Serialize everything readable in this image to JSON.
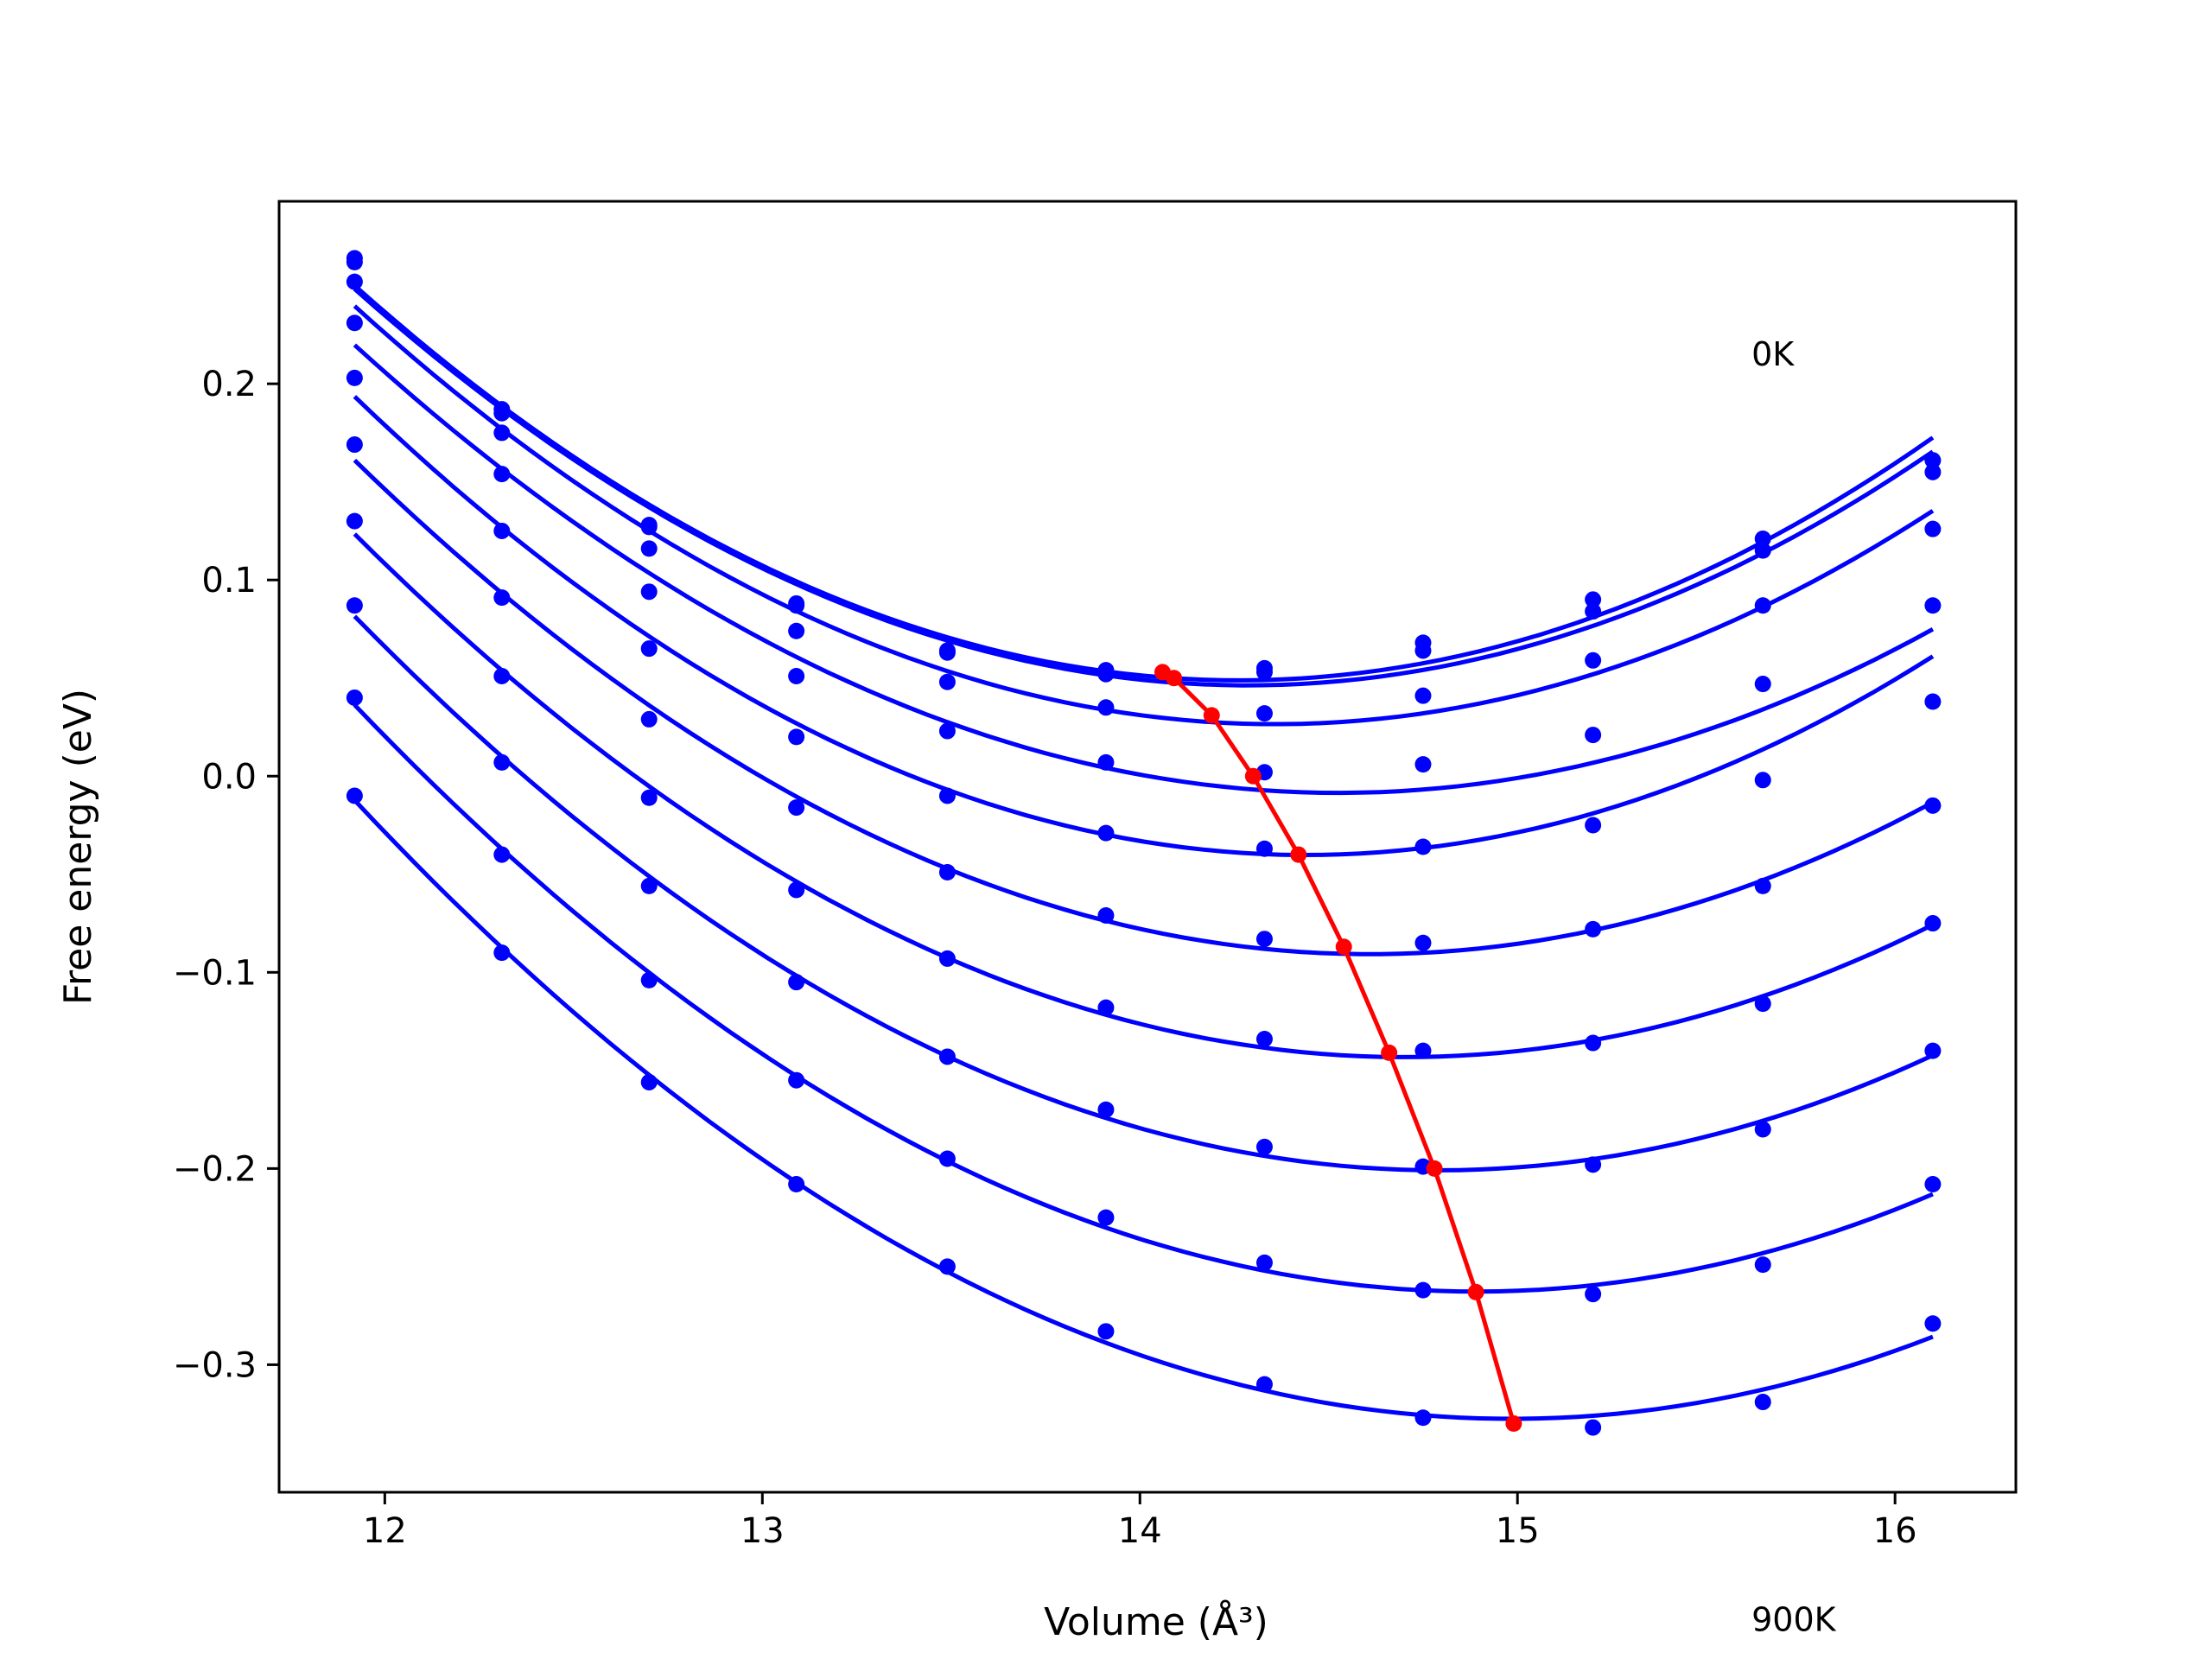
{
  "chart_data": {
    "type": "line",
    "title": "",
    "xlabel": "Volume (Å³)",
    "ylabel": "Free energy (eV)",
    "xlim": [
      11.72,
      16.32
    ],
    "ylim": [
      -0.365,
      0.293
    ],
    "xticks": [
      12,
      13,
      14,
      15,
      16
    ],
    "yticks": [
      -0.3,
      -0.2,
      -0.1,
      0.0,
      0.1,
      0.2
    ],
    "ytick_labels": [
      "−0.3",
      "−0.2",
      "−0.1",
      "0.0",
      "0.1",
      "0.2"
    ],
    "grid": false,
    "annotations": [
      {
        "text": "0K",
        "x": 15.62,
        "y": 0.215
      },
      {
        "text": "900K",
        "x": 15.62,
        "y": -0.43
      }
    ],
    "x": [
      11.92,
      12.31,
      12.7,
      13.09,
      13.49,
      13.91,
      14.33,
      14.75,
      15.2,
      15.65,
      16.1
    ],
    "colors": {
      "isotherm": "#0000ff",
      "minimum": "#ff0000"
    },
    "series": [
      {
        "values": [
          0.264,
          0.187,
          0.128,
          0.088,
          0.064,
          0.054,
          0.055,
          0.068,
          0.09,
          0.121,
          0.161
        ],
        "minimum": [
          14.06,
          0.053
        ]
      },
      {
        "values": [
          0.262,
          0.185,
          0.127,
          0.087,
          0.063,
          0.052,
          0.053,
          0.064,
          0.084,
          0.115,
          0.155
        ],
        "minimum": [
          14.09,
          0.05
        ]
      },
      {
        "values": [
          0.252,
          0.175,
          0.116,
          0.074,
          0.048,
          0.035,
          0.032,
          0.041,
          0.059,
          0.087,
          0.126
        ],
        "minimum": [
          14.19,
          0.031
        ]
      },
      {
        "values": [
          0.231,
          0.154,
          0.094,
          0.051,
          0.023,
          0.007,
          0.002,
          0.006,
          0.021,
          -0.002,
          0.087
        ],
        "minimum": [
          14.3,
          0.0
        ]
      },
      {
        "values": [
          0.203,
          0.125,
          0.065,
          0.02,
          -0.01,
          -0.029,
          -0.037,
          -0.036,
          -0.025,
          0.047,
          0.038
        ],
        "minimum": [
          14.42,
          -0.04
        ]
      },
      {
        "values": [
          0.169,
          0.091,
          0.029,
          -0.016,
          -0.049,
          -0.071,
          -0.083,
          -0.085,
          -0.078,
          -0.056,
          -0.015
        ],
        "minimum": [
          14.54,
          -0.087
        ]
      },
      {
        "values": [
          0.13,
          0.051,
          -0.011,
          -0.058,
          -0.093,
          -0.118,
          -0.134,
          -0.14,
          -0.136,
          -0.116,
          -0.075
        ],
        "minimum": [
          14.66,
          -0.141
        ]
      },
      {
        "values": [
          0.087,
          0.007,
          -0.056,
          -0.105,
          -0.143,
          -0.17,
          -0.189,
          -0.199,
          -0.198,
          -0.18,
          -0.14
        ],
        "minimum": [
          14.78,
          -0.2
        ]
      },
      {
        "values": [
          0.04,
          -0.04,
          -0.104,
          -0.155,
          -0.195,
          -0.225,
          -0.248,
          -0.262,
          -0.264,
          -0.249,
          -0.208
        ],
        "minimum": [
          14.89,
          -0.263
        ]
      },
      {
        "values": [
          -0.01,
          -0.09,
          -0.156,
          -0.208,
          -0.25,
          -0.283,
          -0.31,
          -0.327,
          -0.332,
          -0.319,
          -0.279
        ],
        "minimum": [
          14.99,
          -0.33
        ]
      }
    ]
  }
}
